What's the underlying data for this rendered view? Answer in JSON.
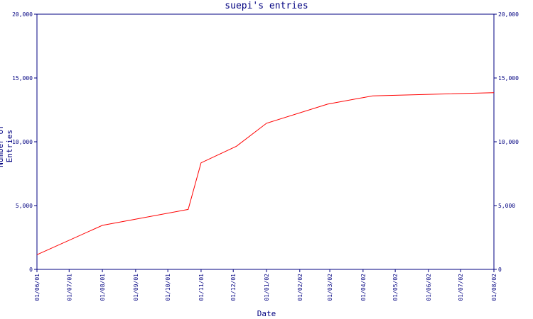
{
  "chart_data": {
    "type": "line",
    "title": "suepi's entries",
    "xlabel": "Date",
    "ylabel": "Number of Entries",
    "x_ticks": [
      "01/06/01",
      "01/07/01",
      "01/08/01",
      "01/09/01",
      "01/10/01",
      "01/11/01",
      "01/12/01",
      "01/01/02",
      "01/02/02",
      "01/03/02",
      "01/04/02",
      "01/05/02",
      "01/06/02",
      "01/07/02",
      "01/08/02"
    ],
    "y_ticks": [
      "0",
      "5,000",
      "10,000",
      "15,000",
      "20,000"
    ],
    "ylim": [
      0,
      20000
    ],
    "series": [
      {
        "points": [
          {
            "x": "2001-06-01",
            "y": 1150
          },
          {
            "x": "2001-08-01",
            "y": 3450
          },
          {
            "x": "2001-10-20",
            "y": 4700
          },
          {
            "x": "2001-11-01",
            "y": 8350
          },
          {
            "x": "2001-12-04",
            "y": 9650
          },
          {
            "x": "2002-01-01",
            "y": 11450
          },
          {
            "x": "2002-02-27",
            "y": 12950
          },
          {
            "x": "2002-04-10",
            "y": 13600
          },
          {
            "x": "2002-08-01",
            "y": 13850
          }
        ]
      }
    ],
    "grid": false,
    "colors": {
      "line": "#ff0000",
      "axis": "#000080",
      "text": "#000080"
    }
  }
}
